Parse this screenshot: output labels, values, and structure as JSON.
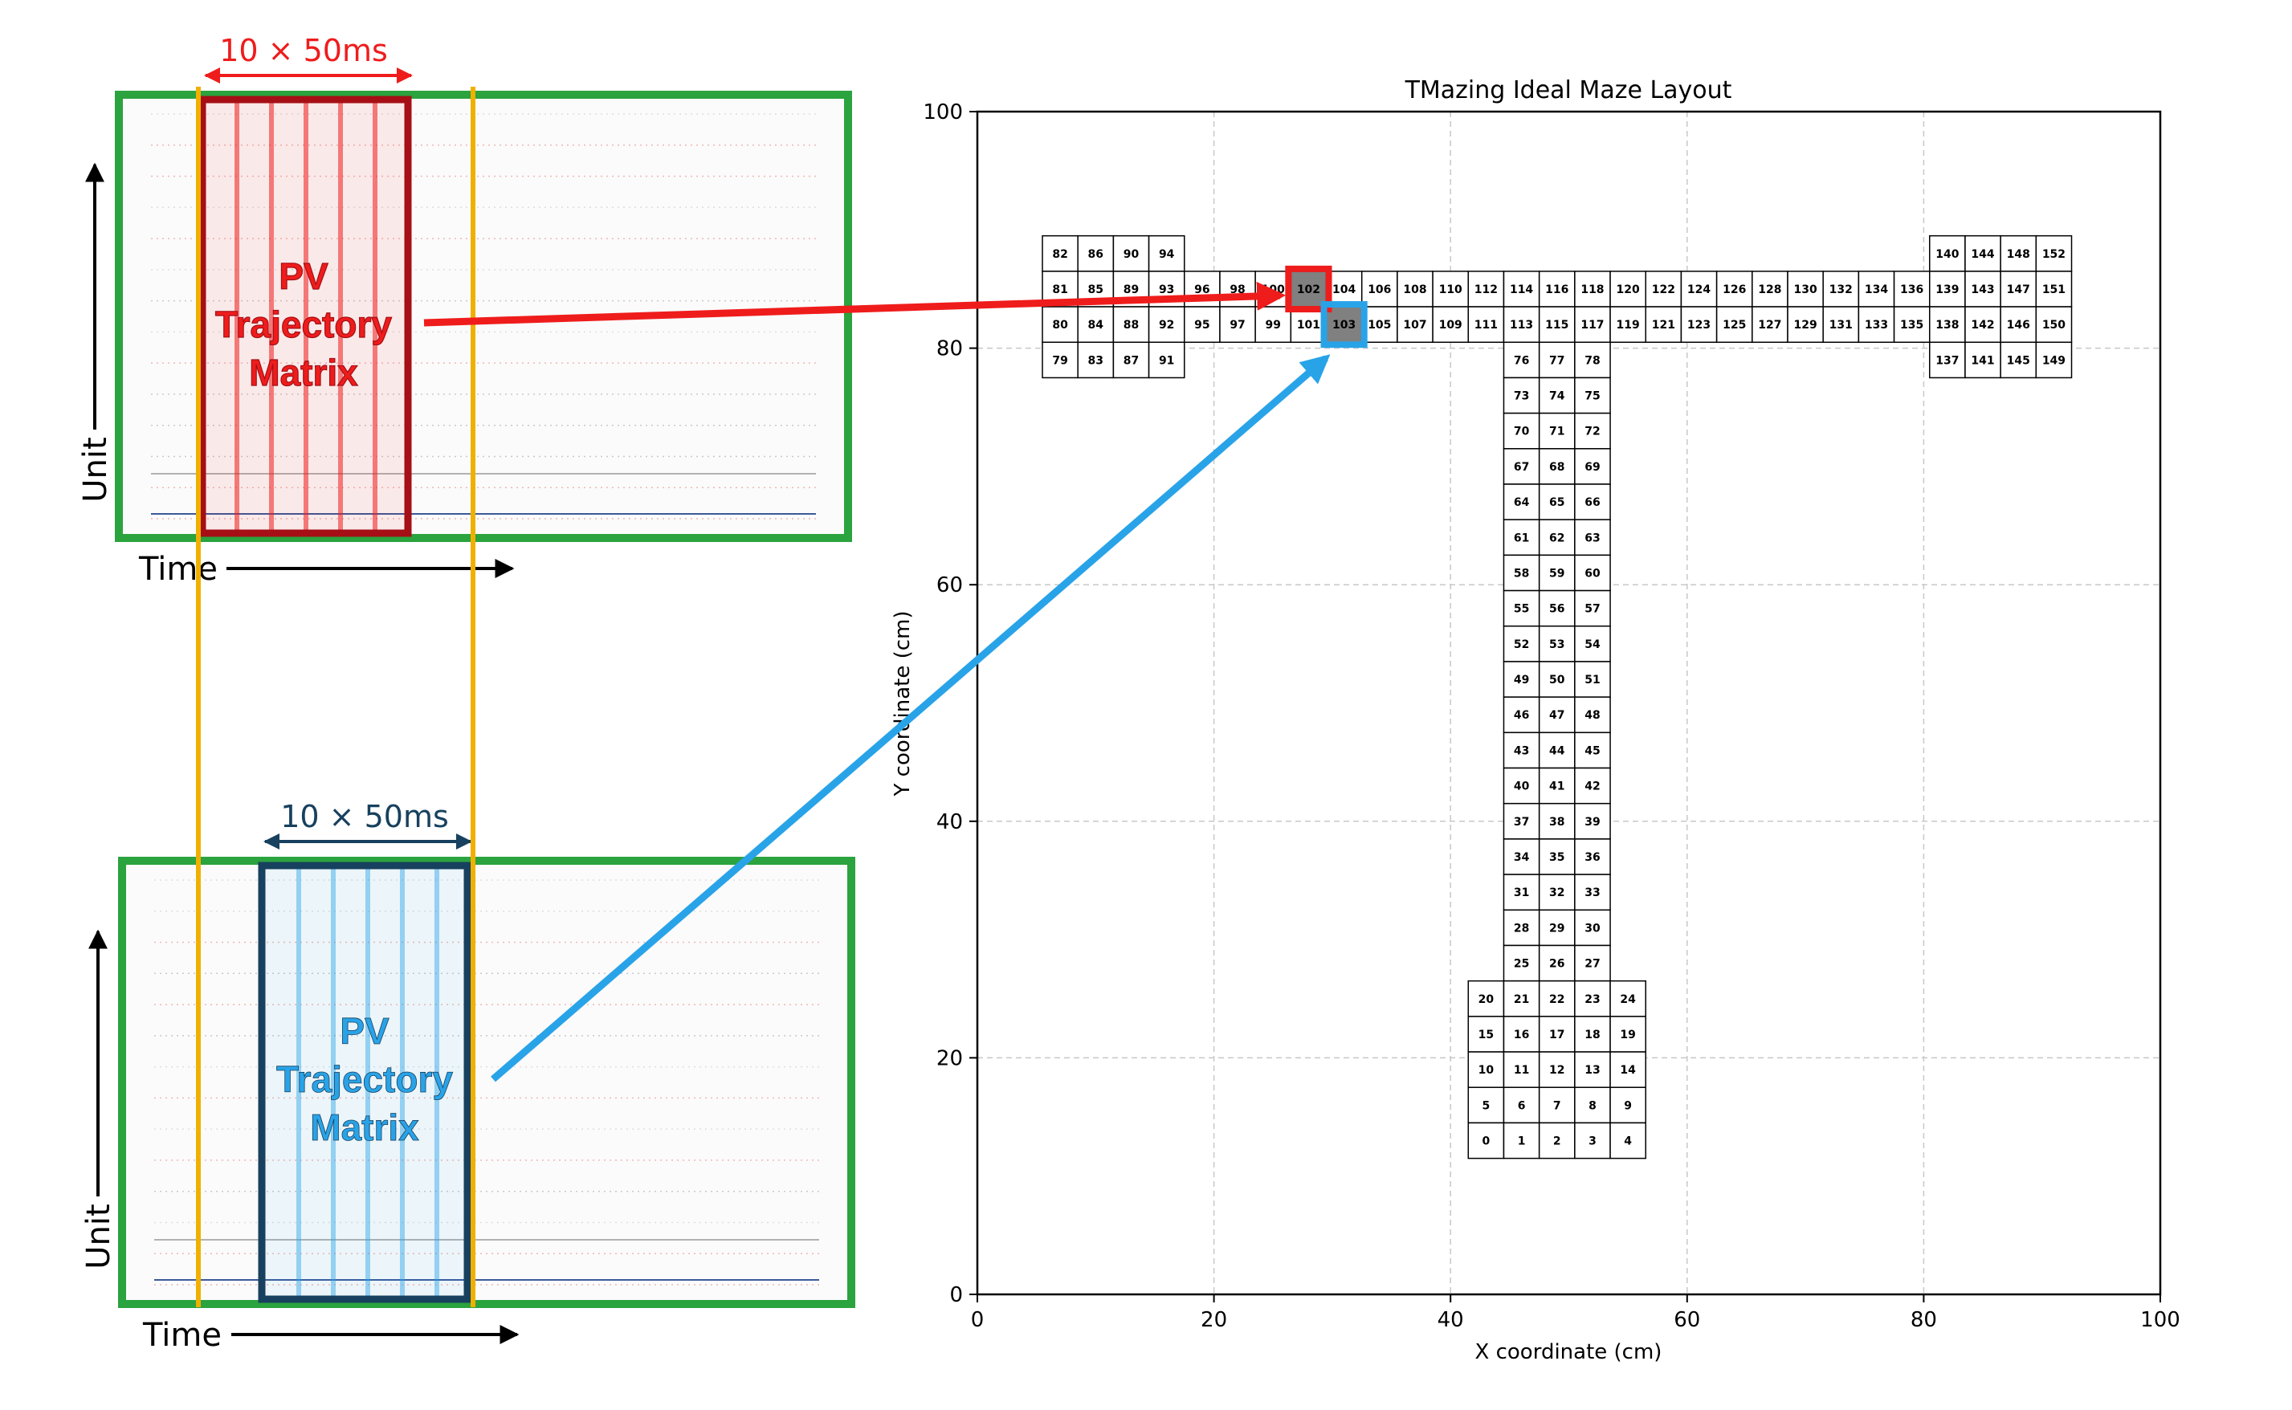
{
  "panels": {
    "top": {
      "window_label": "10 × 50ms",
      "matrix_text": [
        "PV",
        "Trajectory",
        "Matrix"
      ],
      "unit_axis_label": "Unit",
      "time_axis_label": "Time",
      "highlight_color": "#ef1c1c",
      "dark_color": "#a50f15"
    },
    "bottom": {
      "window_label": "10 × 50ms",
      "matrix_text": [
        "PV",
        "Trajectory",
        "Matrix"
      ],
      "unit_axis_label": "Unit",
      "time_axis_label": "Time",
      "highlight_color": "#29a3e8",
      "dark_color": "#17415e"
    },
    "frame_color": "#2ba33e",
    "window_line_color": "#f0b000"
  },
  "chart_data": {
    "type": "grid-layout",
    "title": "TMazing Ideal Maze Layout",
    "xlabel": "X coordinate (cm)",
    "ylabel": "Y coordinate (cm)",
    "xlim": [
      0,
      100
    ],
    "ylim": [
      0,
      100
    ],
    "xticks": [
      0,
      20,
      40,
      60,
      80,
      100
    ],
    "yticks": [
      0,
      20,
      40,
      60,
      80,
      100
    ],
    "grid": true,
    "cell_size_cm": 3,
    "highlight_red_cell": 102,
    "highlight_blue_cell": 103,
    "cells": [
      [
        7,
        88,
        82
      ],
      [
        10,
        88,
        86
      ],
      [
        13,
        88,
        90
      ],
      [
        16,
        88,
        94
      ],
      [
        7,
        85,
        81
      ],
      [
        10,
        85,
        85
      ],
      [
        13,
        85,
        89
      ],
      [
        16,
        85,
        93
      ],
      [
        19,
        85,
        96
      ],
      [
        22,
        85,
        98
      ],
      [
        25,
        85,
        100
      ],
      [
        7,
        82,
        80
      ],
      [
        10,
        82,
        84
      ],
      [
        13,
        82,
        88
      ],
      [
        16,
        82,
        92
      ],
      [
        19,
        82,
        95
      ],
      [
        22,
        82,
        97
      ],
      [
        25,
        82,
        99
      ],
      [
        28,
        82,
        101
      ],
      [
        7,
        79,
        79
      ],
      [
        10,
        79,
        83
      ],
      [
        13,
        79,
        87
      ],
      [
        16,
        79,
        91
      ],
      [
        28,
        85,
        102
      ],
      [
        31,
        85,
        104
      ],
      [
        34,
        85,
        106
      ],
      [
        37,
        85,
        108
      ],
      [
        40,
        85,
        110
      ],
      [
        43,
        85,
        112
      ],
      [
        46,
        85,
        114
      ],
      [
        49,
        85,
        116
      ],
      [
        52,
        85,
        118
      ],
      [
        55,
        85,
        120
      ],
      [
        58,
        85,
        122
      ],
      [
        61,
        85,
        124
      ],
      [
        64,
        85,
        126
      ],
      [
        67,
        85,
        128
      ],
      [
        70,
        85,
        130
      ],
      [
        73,
        85,
        132
      ],
      [
        76,
        85,
        134
      ],
      [
        79,
        85,
        136
      ],
      [
        31,
        82,
        103
      ],
      [
        34,
        82,
        105
      ],
      [
        37,
        82,
        107
      ],
      [
        40,
        82,
        109
      ],
      [
        43,
        82,
        111
      ],
      [
        46,
        82,
        113
      ],
      [
        49,
        82,
        115
      ],
      [
        52,
        82,
        117
      ],
      [
        55,
        82,
        119
      ],
      [
        58,
        82,
        121
      ],
      [
        61,
        82,
        123
      ],
      [
        64,
        82,
        125
      ],
      [
        67,
        82,
        127
      ],
      [
        70,
        82,
        129
      ],
      [
        73,
        82,
        131
      ],
      [
        76,
        82,
        133
      ],
      [
        79,
        82,
        135
      ],
      [
        82,
        88,
        140
      ],
      [
        85,
        88,
        144
      ],
      [
        88,
        88,
        148
      ],
      [
        91,
        88,
        152
      ],
      [
        82,
        85,
        139
      ],
      [
        85,
        85,
        143
      ],
      [
        88,
        85,
        147
      ],
      [
        91,
        85,
        151
      ],
      [
        82,
        82,
        138
      ],
      [
        85,
        82,
        142
      ],
      [
        88,
        82,
        146
      ],
      [
        91,
        82,
        150
      ],
      [
        82,
        79,
        137
      ],
      [
        85,
        79,
        141
      ],
      [
        88,
        79,
        145
      ],
      [
        91,
        79,
        149
      ],
      [
        46,
        79,
        76
      ],
      [
        49,
        79,
        77
      ],
      [
        52,
        79,
        78
      ],
      [
        46,
        76,
        73
      ],
      [
        49,
        76,
        74
      ],
      [
        52,
        76,
        75
      ],
      [
        46,
        73,
        70
      ],
      [
        49,
        73,
        71
      ],
      [
        52,
        73,
        72
      ],
      [
        46,
        70,
        67
      ],
      [
        49,
        70,
        68
      ],
      [
        52,
        70,
        69
      ],
      [
        46,
        67,
        64
      ],
      [
        49,
        67,
        65
      ],
      [
        52,
        67,
        66
      ],
      [
        46,
        64,
        61
      ],
      [
        49,
        64,
        62
      ],
      [
        52,
        64,
        63
      ],
      [
        46,
        61,
        58
      ],
      [
        49,
        61,
        59
      ],
      [
        52,
        61,
        60
      ],
      [
        46,
        58,
        55
      ],
      [
        49,
        58,
        56
      ],
      [
        52,
        58,
        57
      ],
      [
        46,
        55,
        52
      ],
      [
        49,
        55,
        53
      ],
      [
        52,
        55,
        54
      ],
      [
        46,
        52,
        49
      ],
      [
        49,
        52,
        50
      ],
      [
        52,
        52,
        51
      ],
      [
        46,
        49,
        46
      ],
      [
        49,
        49,
        47
      ],
      [
        52,
        49,
        48
      ],
      [
        46,
        46,
        43
      ],
      [
        49,
        46,
        44
      ],
      [
        52,
        46,
        45
      ],
      [
        46,
        43,
        40
      ],
      [
        49,
        43,
        41
      ],
      [
        52,
        43,
        42
      ],
      [
        46,
        40,
        37
      ],
      [
        49,
        40,
        38
      ],
      [
        52,
        40,
        39
      ],
      [
        46,
        37,
        34
      ],
      [
        49,
        37,
        35
      ],
      [
        52,
        37,
        36
      ],
      [
        46,
        34,
        31
      ],
      [
        49,
        34,
        32
      ],
      [
        52,
        34,
        33
      ],
      [
        46,
        31,
        28
      ],
      [
        49,
        31,
        29
      ],
      [
        52,
        31,
        30
      ],
      [
        46,
        28,
        25
      ],
      [
        49,
        28,
        26
      ],
      [
        52,
        28,
        27
      ],
      [
        43,
        25,
        20
      ],
      [
        46,
        25,
        21
      ],
      [
        49,
        25,
        22
      ],
      [
        52,
        25,
        23
      ],
      [
        55,
        25,
        24
      ],
      [
        43,
        22,
        15
      ],
      [
        46,
        22,
        16
      ],
      [
        49,
        22,
        17
      ],
      [
        52,
        22,
        18
      ],
      [
        55,
        22,
        19
      ],
      [
        43,
        19,
        10
      ],
      [
        46,
        19,
        11
      ],
      [
        49,
        19,
        12
      ],
      [
        52,
        19,
        13
      ],
      [
        55,
        19,
        14
      ],
      [
        43,
        16,
        5
      ],
      [
        46,
        16,
        6
      ],
      [
        49,
        16,
        7
      ],
      [
        52,
        16,
        8
      ],
      [
        55,
        16,
        9
      ],
      [
        43,
        13,
        0
      ],
      [
        46,
        13,
        1
      ],
      [
        49,
        13,
        2
      ],
      [
        52,
        13,
        3
      ],
      [
        55,
        13,
        4
      ]
    ]
  }
}
